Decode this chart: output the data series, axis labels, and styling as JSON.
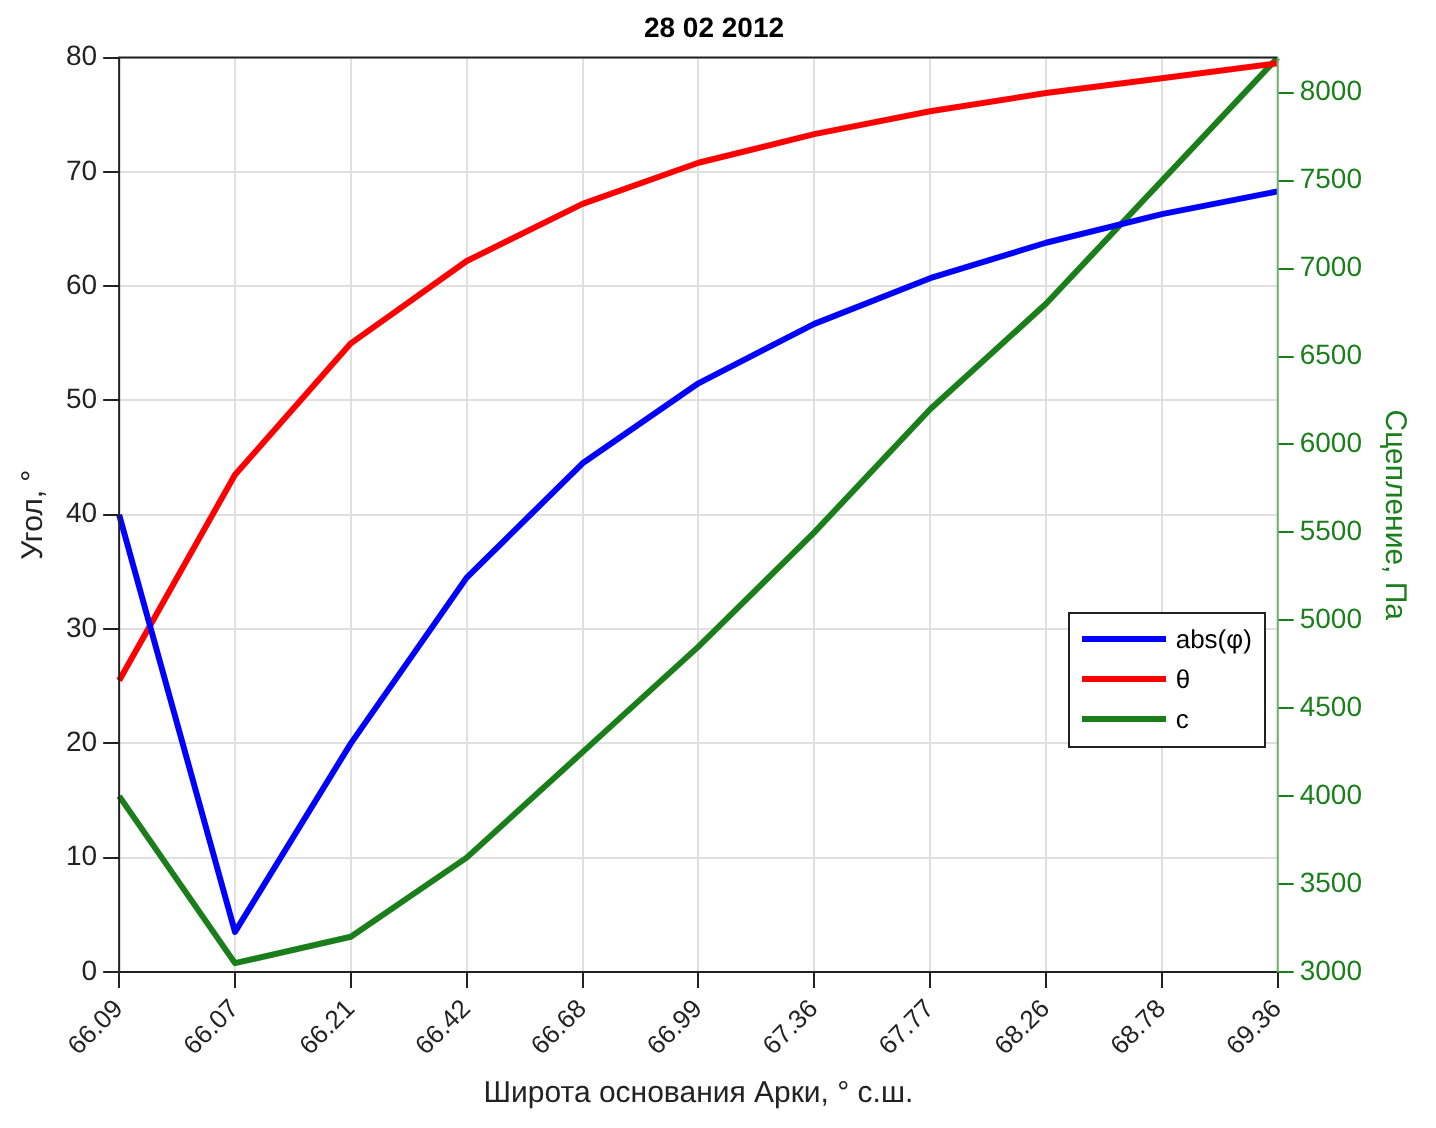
{
  "chart_data": {
    "type": "line",
    "title": "28 02 2012",
    "xlabel": "Широта основания Арки, ° с.ш.",
    "ylabel": "Угол, °",
    "y2label": "Сцепление, Па",
    "categories": [
      "66.09",
      "66.07",
      "66.21",
      "66.42",
      "66.68",
      "66.99",
      "67.36",
      "67.77",
      "68.26",
      "68.78",
      "69.36"
    ],
    "series": [
      {
        "name": "abs(φ)",
        "color": "#0000ff",
        "values": [
          40,
          3.5,
          20,
          34.5,
          44.5,
          51.5,
          56.7,
          60.7,
          63.8,
          66.3,
          68.3
        ]
      },
      {
        "name": "θ",
        "color": "#ff0000",
        "values": [
          25.5,
          43.5,
          55,
          62.2,
          67.2,
          70.8,
          73.3,
          75.3,
          76.9,
          78.2,
          79.5
        ]
      },
      {
        "name": "c",
        "color": "#1a7f1a",
        "axis": "y2",
        "values": [
          4000,
          3050,
          3200,
          3650,
          4250,
          4850,
          5500,
          6200,
          6800,
          7500,
          8200
        ]
      }
    ],
    "ylim": [
      0,
      80
    ],
    "yticks": [
      0,
      10,
      20,
      30,
      40,
      50,
      60,
      70,
      80
    ],
    "y2lim": [
      3000,
      8200
    ],
    "y2ticks": [
      3000,
      3500,
      4000,
      4500,
      5000,
      5500,
      6000,
      6500,
      7000,
      7500,
      8000
    ],
    "grid": true,
    "legend": "right"
  }
}
